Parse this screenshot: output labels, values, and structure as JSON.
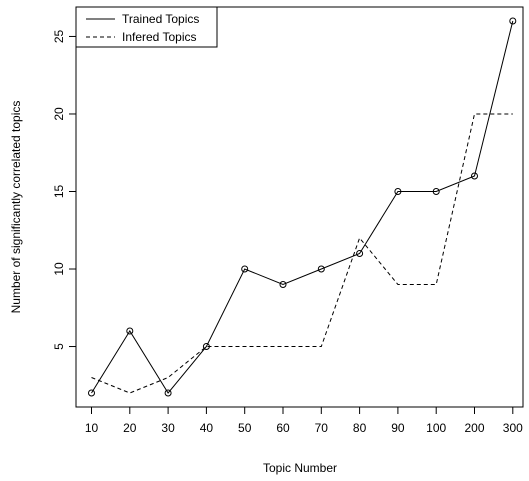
{
  "chart_data": {
    "type": "line",
    "title": "",
    "xlabel": "Topic Number",
    "ylabel": "Number of significantly correlated topics",
    "categories": [
      "10",
      "20",
      "30",
      "40",
      "50",
      "60",
      "70",
      "80",
      "90",
      "100",
      "200",
      "300"
    ],
    "y_ticks": [
      "5",
      "10",
      "15",
      "20",
      "25"
    ],
    "ylim": [
      1.1,
      26.9
    ],
    "grid": false,
    "legend_position": "top-left",
    "series": [
      {
        "name": "Trained Topics",
        "style": "solid",
        "markers": "open-circle",
        "color": "#000000",
        "values": [
          2,
          6,
          2,
          5,
          10,
          9,
          10,
          11,
          15,
          15,
          16,
          26
        ]
      },
      {
        "name": "Infered Topics",
        "style": "dashed",
        "markers": "none",
        "color": "#000000",
        "values": [
          3,
          2,
          3,
          5,
          5,
          5,
          5,
          12,
          9,
          9,
          20,
          20
        ]
      }
    ]
  }
}
